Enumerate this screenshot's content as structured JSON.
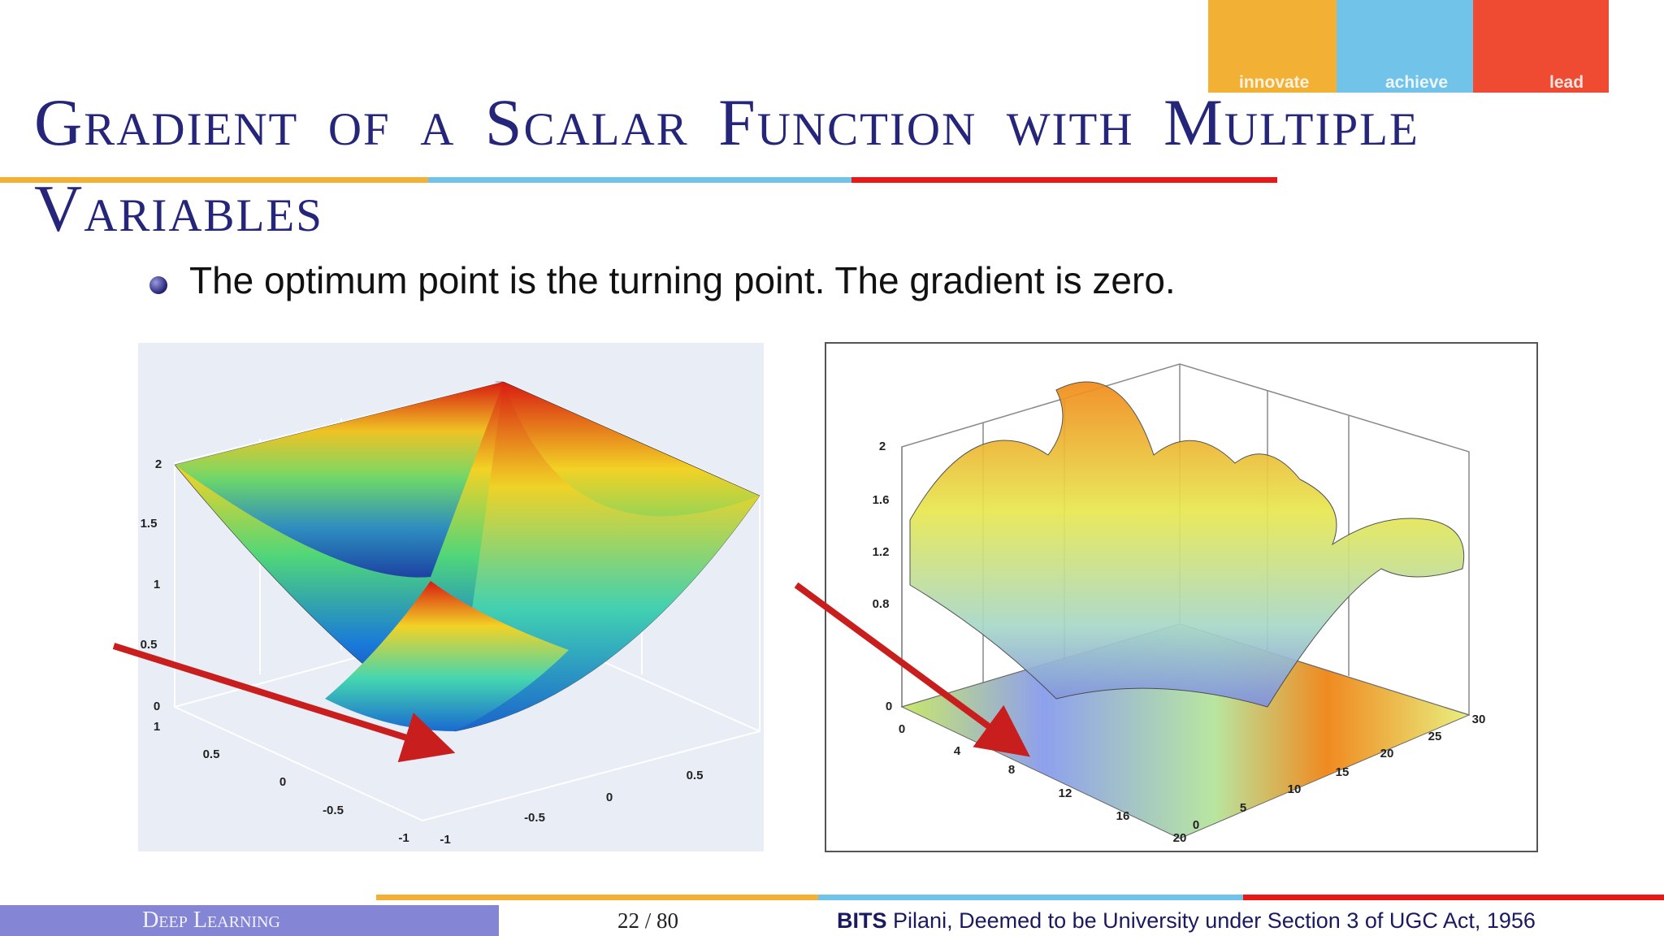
{
  "header": {
    "title": "Gradient of a Scalar Function with Multiple Variables"
  },
  "logo": [
    "innovate",
    "achieve",
    "lead"
  ],
  "bullets": [
    "The optimum point is the turning point. The gradient is zero."
  ],
  "figures": [
    {
      "z_ticks": [
        2,
        1.5,
        1,
        0.5,
        0
      ],
      "y_ticks": [
        1,
        0.5,
        0,
        -0.5,
        -1
      ],
      "x_ticks": [
        -1,
        -0.5,
        0,
        0.5
      ]
    },
    {
      "z_ticks": [
        2,
        1.6,
        1.2,
        0.8,
        0
      ],
      "x_ticks": [
        0,
        4,
        8,
        12,
        16,
        20
      ],
      "y_ticks": [
        0,
        5,
        10,
        15,
        20,
        25,
        30
      ]
    }
  ],
  "footer": {
    "left": "Deep Learning",
    "page": "22 / 80",
    "institution_bold": "BITS",
    "institution": "Pilani, Deemed to be University under Section 3 of UGC Act, 1956"
  }
}
